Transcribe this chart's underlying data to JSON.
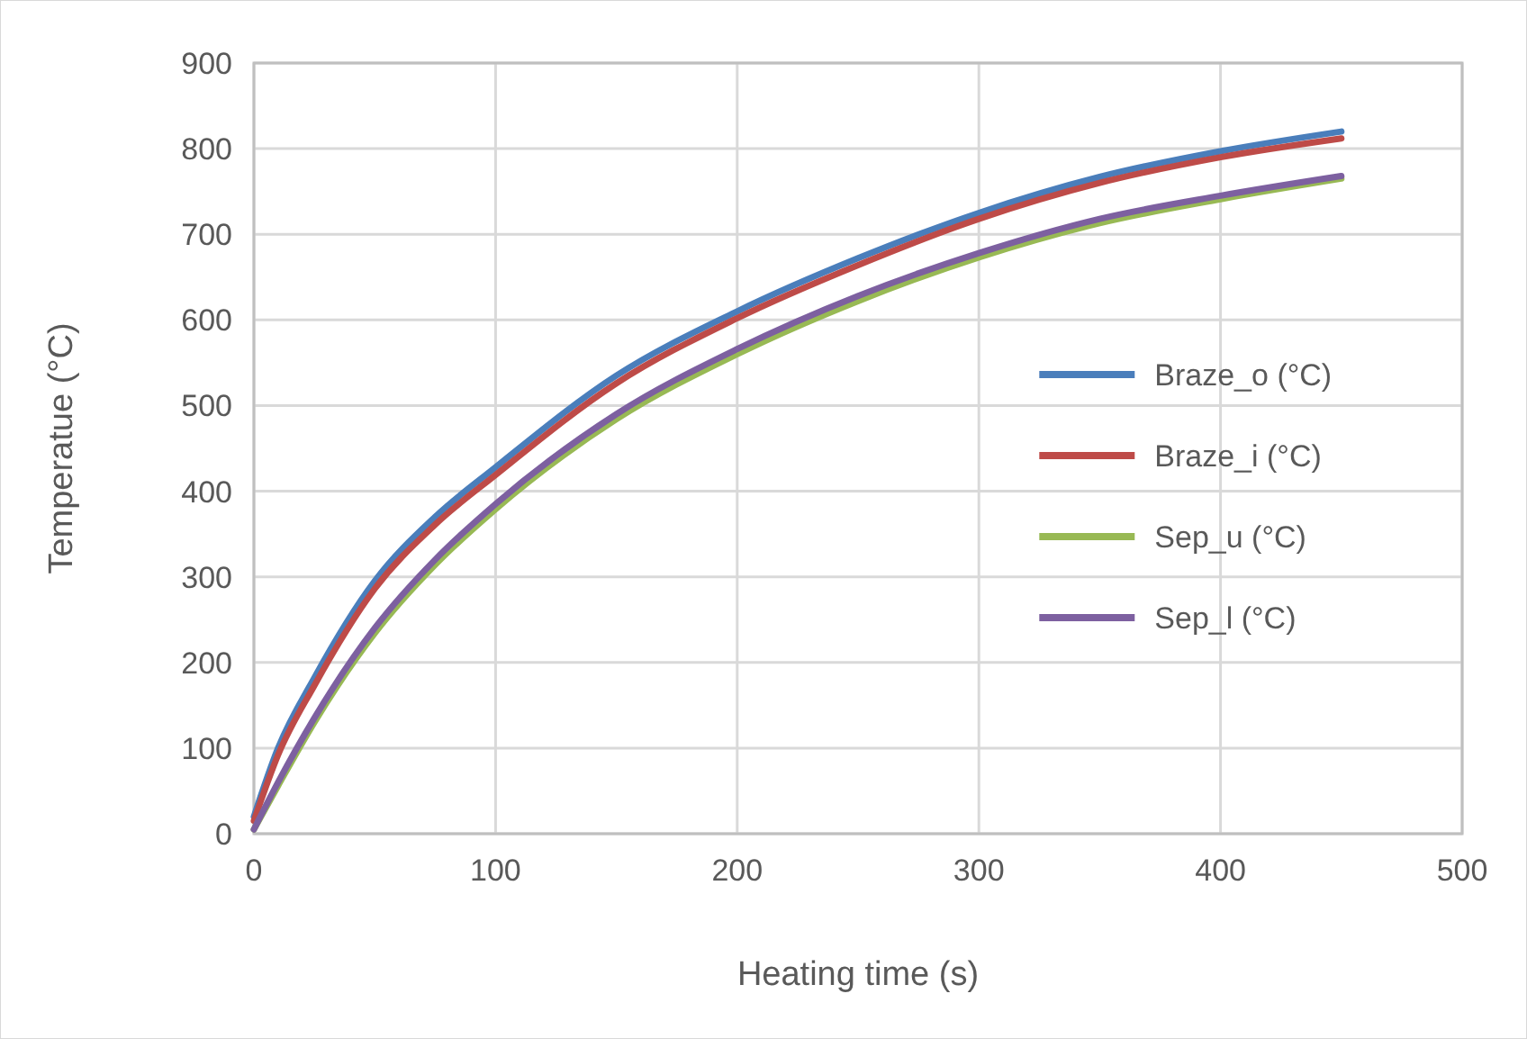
{
  "chart_data": {
    "type": "line",
    "xlabel": "Heating time (s)",
    "ylabel": "Temperatue (°C)",
    "x": [
      0,
      10,
      25,
      50,
      75,
      100,
      150,
      200,
      250,
      300,
      350,
      400,
      450
    ],
    "series": [
      {
        "name": "Braze_o (°C)",
        "color": "#4a7ebb",
        "values": [
          20,
          100,
          182,
          295,
          370,
          428,
          535,
          610,
          672,
          725,
          767,
          797,
          820
        ]
      },
      {
        "name": "Braze_i (°C)",
        "color": "#be4b48",
        "values": [
          15,
          92,
          173,
          286,
          361,
          419,
          526,
          602,
          664,
          718,
          760,
          790,
          812
        ]
      },
      {
        "name": "Sep_u (°C)",
        "color": "#98b954",
        "values": [
          5,
          56,
          130,
          234,
          314,
          379,
          484,
          560,
          622,
          673,
          713,
          741,
          765
        ]
      },
      {
        "name": "Sep_l (°C)",
        "color": "#7d60a0",
        "values": [
          5,
          60,
          135,
          240,
          320,
          385,
          490,
          566,
          628,
          678,
          718,
          745,
          768
        ]
      }
    ],
    "xlim": [
      0,
      500
    ],
    "xticks": [
      0,
      100,
      200,
      300,
      400,
      500
    ],
    "ylim": [
      0,
      900
    ],
    "yticks": [
      0,
      100,
      200,
      300,
      400,
      500,
      600,
      700,
      800,
      900
    ],
    "grid": true,
    "legend": "right",
    "marker": "none",
    "line_style": "solid"
  }
}
